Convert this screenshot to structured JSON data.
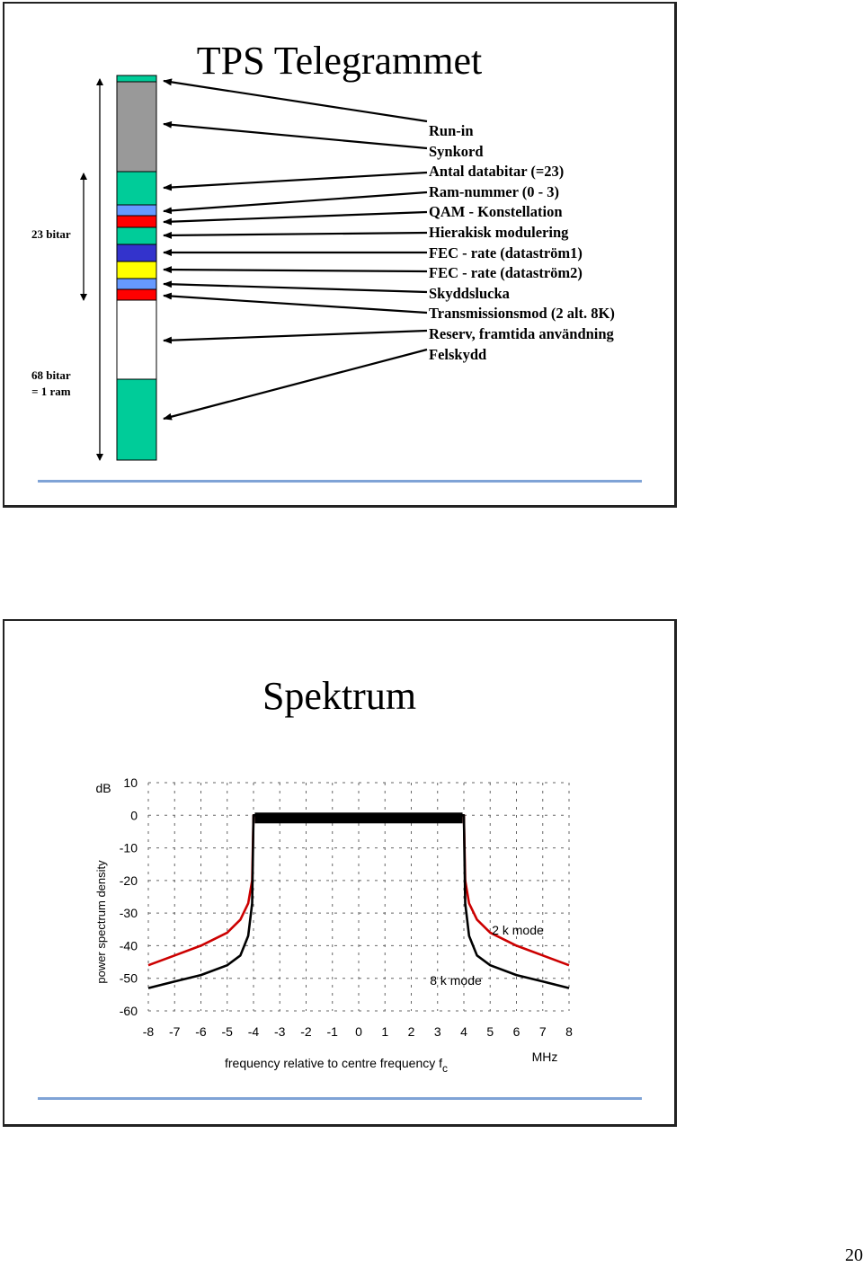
{
  "slides": [
    {
      "title": "TPS Telegrammet",
      "labels": {
        "bits_23": "23 bitar",
        "bits_68_line1": "68 bitar",
        "bits_68_line2": "= 1 ram"
      },
      "items": [
        "Run-in",
        "Synkord",
        "Antal databitar (=23)",
        "Ram-nummer (0 - 3)",
        "QAM - Konstellation",
        "Hierakisk modulering",
        "FEC - rate (dataström1)",
        "FEC - rate (dataström2)",
        "Skyddslucka",
        "Transmissionsmod (2 alt. 8K)",
        "Reserv, framtida användning",
        "Felskydd"
      ],
      "bar_colors": {
        "green": "#00cc99",
        "grey": "#999999",
        "light_blue": "#6699ff",
        "red": "#ff0000",
        "dark_blue": "#3333cc",
        "yellow": "#ffff00",
        "white": "#ffffff"
      }
    },
    {
      "title": "Spektrum",
      "accent_color": "#7fa3d6"
    }
  ],
  "chart_data": {
    "type": "line",
    "xlabel": "frequency relative to centre frequency f",
    "xlabel_subscript": "c",
    "x_unit": "MHz",
    "ylabel": "power spectrum density",
    "y_unit": "dB",
    "xlim": [
      -8,
      8
    ],
    "ylim": [
      -60,
      10
    ],
    "x_ticks": [
      -8,
      -7,
      -6,
      -5,
      -4,
      -3,
      -2,
      -1,
      0,
      1,
      2,
      3,
      4,
      5,
      6,
      7,
      8
    ],
    "y_ticks": [
      10,
      0,
      -10,
      -20,
      -30,
      -40,
      -50,
      -60
    ],
    "grid": true,
    "series": [
      {
        "name": "2 k mode",
        "color": "#cc0000",
        "x": [
          -8,
          -7,
          -6,
          -5,
          -4.5,
          -4.2,
          -4.05,
          -4,
          -3.8,
          0,
          3.8,
          4,
          4.05,
          4.2,
          4.5,
          5,
          6,
          7,
          8
        ],
        "y": [
          -46,
          -43,
          -40,
          -36,
          -32,
          -27,
          -20,
          0,
          0,
          0,
          0,
          0,
          -20,
          -27,
          -32,
          -36,
          -40,
          -43,
          -46
        ]
      },
      {
        "name": "8 k mode",
        "color": "#000000",
        "x": [
          -8,
          -7,
          -6,
          -5,
          -4.5,
          -4.2,
          -4.05,
          -4,
          -3.8,
          0,
          3.8,
          4,
          4.05,
          4.2,
          4.5,
          5,
          6,
          7,
          8
        ],
        "y": [
          -53,
          -51,
          -49,
          -46,
          -43,
          -37,
          -27,
          0,
          0,
          0,
          0,
          0,
          -27,
          -37,
          -43,
          -46,
          -49,
          -51,
          -53
        ]
      }
    ]
  },
  "page_number": "20"
}
